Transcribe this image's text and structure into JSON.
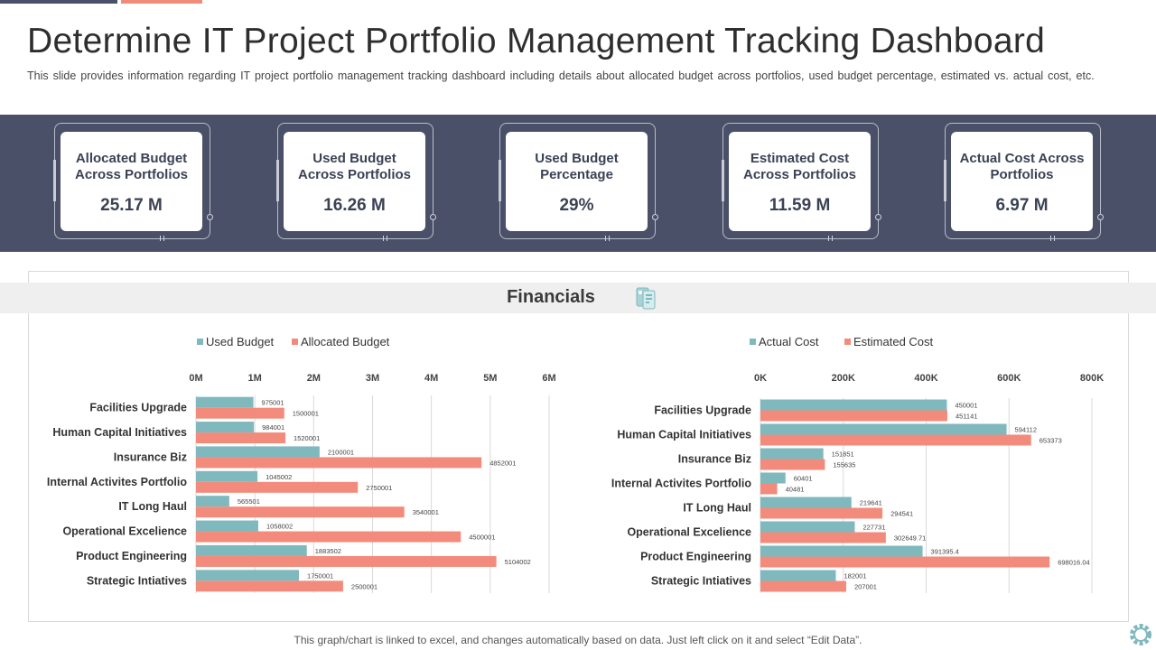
{
  "page": {
    "title": "Determine IT Project Portfolio Management Tracking Dashboard",
    "subtitle": "This slide provides information regarding IT project portfolio management tracking dashboard including details about allocated budget across portfolios, used budget percentage, estimated vs. actual cost, etc.",
    "section_title": "Financials",
    "footnote": "This graph/chart is linked to excel, and changes automatically based on data. Just left click on it and select “Edit Data”."
  },
  "kpis": [
    {
      "label": "Allocated Budget Across Portfolios",
      "value": "25.17 M"
    },
    {
      "label": "Used Budget Across Portfolios",
      "value": "16.26 M"
    },
    {
      "label": "Used Budget Percentage",
      "value": "29%"
    },
    {
      "label": "Estimated Cost Across Portfolios",
      "value": "11.59 M"
    },
    {
      "label": "Actual Cost Across Portfolios",
      "value": "6.97 M"
    }
  ],
  "colors": {
    "teal": "#7fb8bd",
    "salmon": "#f28b7c",
    "band": "#4a5068",
    "grid": "#d9d9d9"
  },
  "icons": [
    "financials-icon",
    "gear-icon"
  ],
  "chart_data": [
    {
      "type": "bar",
      "orientation": "horizontal",
      "categories": [
        "Facilities Upgrade",
        "Human Capital Initiatives",
        "Insurance Biz",
        "Internal Activites Portfolio",
        "IT Long Haul",
        "Operational Excelience",
        "Product Engineering",
        "Strategic Intiatives"
      ],
      "series": [
        {
          "name": "Used Budget",
          "color": "#7fb8bd",
          "values": [
            975001,
            984001,
            2100001,
            1045002,
            565501,
            1058002,
            1883502,
            1750001
          ],
          "labels": [
            "975001",
            "984001",
            "2100001",
            "1045002",
            "565501",
            "1058002",
            "1883502",
            "1750001"
          ]
        },
        {
          "name": "Allocated Budget",
          "color": "#f28b7c",
          "values": [
            1500001,
            1520001,
            4852001,
            2750001,
            3540001,
            4500001,
            5104002,
            2500001
          ],
          "labels": [
            "1500001",
            "1520001",
            "4852001",
            "2750001",
            "3540001",
            "4500001",
            "5104002",
            "2500001"
          ]
        }
      ],
      "xlim": [
        0,
        6000000
      ],
      "ticks": [
        "0M",
        "1M",
        "2M",
        "3M",
        "4M",
        "5M",
        "6M"
      ],
      "legend": "top",
      "grid": true
    },
    {
      "type": "bar",
      "orientation": "horizontal",
      "categories": [
        "Facilities Upgrade",
        "Human Capital Initiatives",
        "Insurance Biz",
        "Internal Activites Portfolio",
        "IT Long Haul",
        "Operational Excelience",
        "Product Engineering",
        "Strategic Intiatives"
      ],
      "series": [
        {
          "name": "Actual Cost",
          "color": "#7fb8bd",
          "values": [
            450001,
            594112,
            151851,
            60401,
            219641,
            227731,
            391395.4,
            182001
          ],
          "labels": [
            "450001",
            "594112",
            "151851",
            "60401",
            "219641",
            "227731",
            "391395.4",
            "182001"
          ]
        },
        {
          "name": "Estimated Cost",
          "color": "#f28b7c",
          "values": [
            451141,
            653373,
            155635,
            40481,
            294541,
            302649.71,
            698016.04,
            207001
          ],
          "labels": [
            "451141",
            "653373",
            "155635",
            "40481",
            "294541",
            "302649.71",
            "698016.04",
            "207001"
          ]
        }
      ],
      "xlim": [
        0,
        800000
      ],
      "ticks": [
        "0K",
        "200K",
        "400K",
        "600K",
        "800K"
      ],
      "legend": "top",
      "grid": true
    }
  ]
}
